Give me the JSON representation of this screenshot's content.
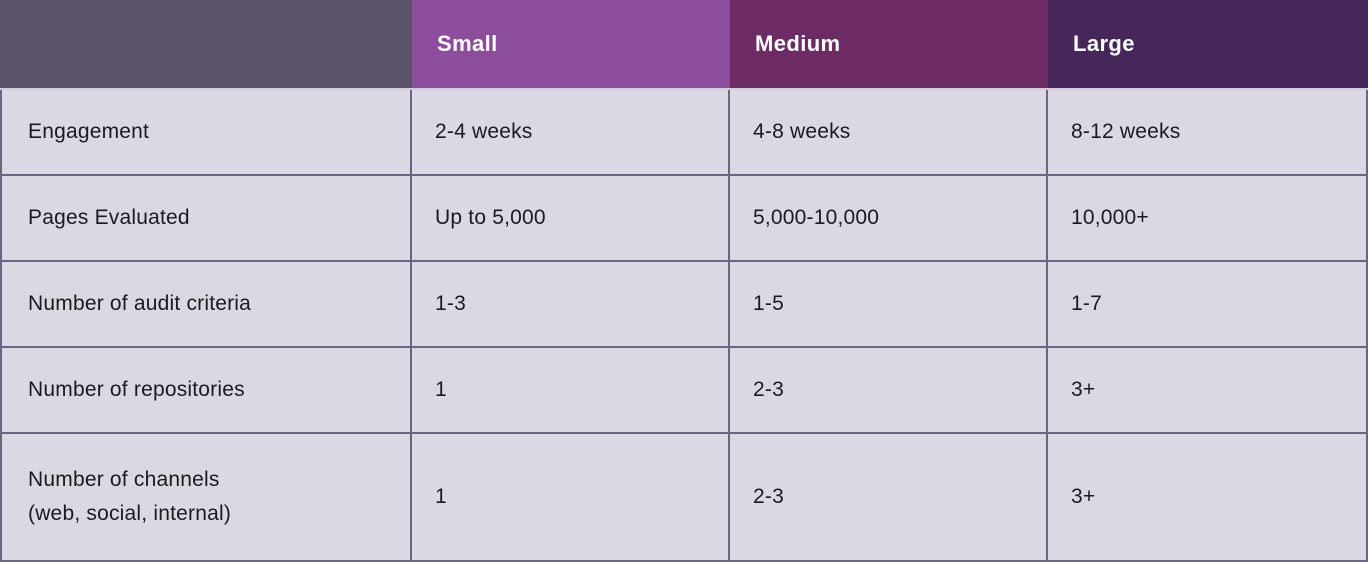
{
  "chart_data": {
    "type": "table",
    "columns": [
      "",
      "Small",
      "Medium",
      "Large"
    ],
    "rows": [
      [
        "Engagement",
        "2-4 weeks",
        "4-8 weeks",
        "8-12 weeks"
      ],
      [
        "Pages Evaluated",
        "Up to 5,000",
        "5,000-10,000",
        "10,000+"
      ],
      [
        "Number of audit criteria",
        "1-3",
        "1-5",
        "1-7"
      ],
      [
        "Number of repositories",
        "1",
        "2-3",
        "3+"
      ],
      [
        "Number of channels\n(web, social, internal)",
        "1",
        "2-3",
        "3+"
      ]
    ]
  },
  "colors": {
    "header_empty_bg": "#5a5268",
    "header_small_bg": "#8d4d9d",
    "header_medium_bg": "#6d2b63",
    "header_large_bg": "#46275c",
    "body_cell_bg": "#dbd8e3",
    "grid_line": "#6b6582",
    "header_divider": "#cfccd9",
    "header_text": "#ffffff",
    "body_text": "#1b1a1f"
  }
}
